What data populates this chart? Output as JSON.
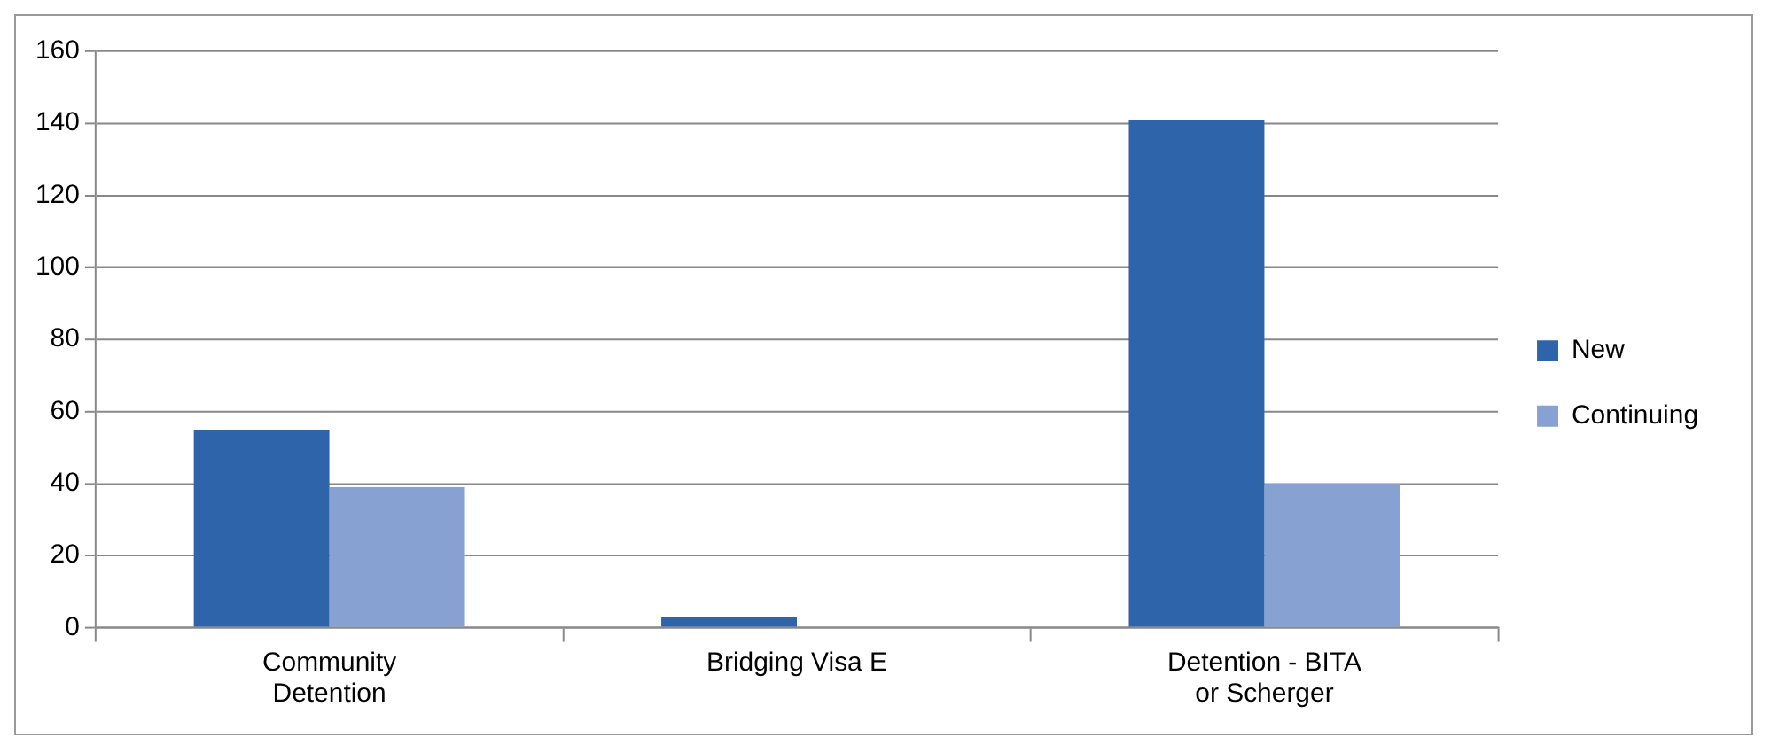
{
  "chart_data": {
    "type": "bar",
    "categories": [
      "Community Detention",
      "Bridging Visa E",
      "Detention - BITA or Scherger"
    ],
    "series": [
      {
        "name": "New",
        "color": "#2e64aa",
        "values": [
          55,
          3,
          141
        ]
      },
      {
        "name": "Continuing",
        "color": "#87a2d2",
        "values": [
          39,
          0,
          40
        ]
      }
    ],
    "ylim": [
      0,
      160
    ],
    "yticks": [
      0,
      20,
      40,
      60,
      80,
      100,
      120,
      140,
      160
    ],
    "grid": "y",
    "legend": "right"
  }
}
